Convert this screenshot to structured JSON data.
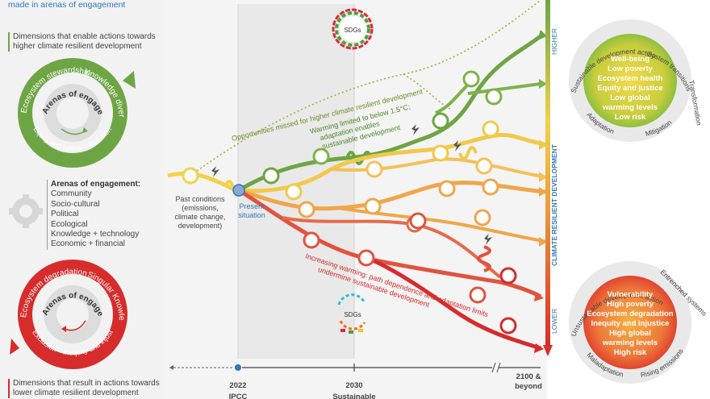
{
  "left": {
    "top_caption": "made in arenas of engagement",
    "green_header": [
      "Dimensions that enable actions towards",
      "higher climate resilient development"
    ],
    "green_wheel": {
      "center": "Arenas of engagement",
      "ring": [
        "Ecosystem stewardship",
        "Knowledge diversity",
        "Equity and justice",
        "Inclusion"
      ]
    },
    "arenas_title": "Arenas of engagement:",
    "arenas_items": [
      "Community",
      "Socio-cultural",
      "Political",
      "Ecological",
      "Knowledge + technology",
      "Economic + financial"
    ],
    "red_wheel": {
      "center": "Arenas of engagement",
      "ring": [
        "Ecosystem degradation",
        "Singular Knowledge",
        "Exclusion",
        "Inequity and injustice"
      ]
    },
    "red_header": [
      "Dimensions that result in actions towards",
      "lower climate resilient development"
    ]
  },
  "center": {
    "sdgs_label": "SDGs",
    "opportunities": "Opportunities missed for higher climate resilient development",
    "warming_limited": [
      "Warming limited to below 1.5°C;",
      "adaptation enables",
      "sustainable development"
    ],
    "increasing_warming": [
      "Increasing warming: path dependence and adaptation limits",
      "undermine sustainable development"
    ],
    "past_conditions": [
      "Past conditions",
      "(emissions,",
      "climate change,",
      "development)"
    ],
    "present_situation": [
      "Present",
      "situation"
    ],
    "timeline": {
      "t2022": "2022",
      "t2030": "2030",
      "t2100": [
        "2100 &",
        "beyond"
      ],
      "ipcc": "IPCC",
      "sustainable": "Sustainable"
    }
  },
  "axis": {
    "title": "CLIMATE RESILIENT DEVELOPMENT",
    "higher": "HIGHER",
    "lower": "LOWER"
  },
  "right": {
    "top_circle": {
      "ring": [
        "Sustainable development action",
        "System transitions",
        "Transformation",
        "Mitigation",
        "Adaptation"
      ],
      "items": [
        "Well-being",
        "Low poverty",
        "Ecosystem health",
        "Equity and justice",
        "Low global",
        "warming levels",
        "Low risk"
      ]
    },
    "bottom_circle": {
      "ring": [
        "Unsustainable development action",
        "Entrenched systems",
        "Rising emissions",
        "Maladaptation"
      ],
      "items": [
        "Vulnerability",
        "High poverty",
        "Ecosystem degradation",
        "Inequity and injustice",
        "High global",
        "warming levels",
        "High risk"
      ]
    }
  },
  "colors": {
    "green": "#6ea544",
    "red": "#d62c2c",
    "orange": "#ee9a3a",
    "yellow": "#f1d24a",
    "blue": "#2f79b9"
  }
}
